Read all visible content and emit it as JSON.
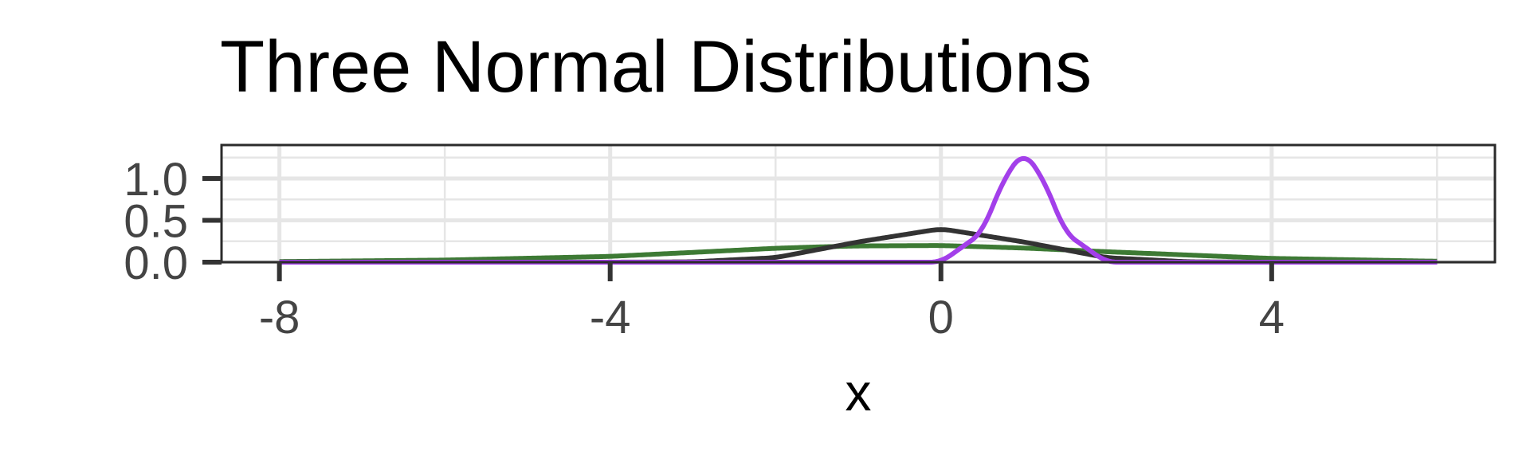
{
  "chart_data": {
    "type": "line",
    "title": "Three Normal Distributions",
    "xlabel": "x",
    "ylabel": "",
    "xlim": [
      -8.7,
      6.7
    ],
    "ylim": [
      0,
      1.4
    ],
    "x_ticks": [
      -8,
      -4,
      0,
      4
    ],
    "x_tick_labels": [
      "-8",
      "-4",
      "0",
      "4"
    ],
    "y_ticks": [
      0,
      0.5,
      1.0
    ],
    "y_tick_labels": [
      "0.0",
      "0.5",
      "1.0"
    ],
    "grid": true,
    "legend": "none",
    "x_range": [
      -8,
      6
    ],
    "series": [
      {
        "color": "#3d7a34",
        "x": [
          -8,
          -6,
          -4,
          -3,
          -2,
          -1.5,
          -1,
          0,
          1,
          2,
          4,
          6
        ],
        "values": [
          0.007,
          0.025,
          0.069,
          0.117,
          0.166,
          0.182,
          0.194,
          0.199,
          0.169,
          0.125,
          0.045,
          0.011
        ]
      },
      {
        "color": "#333333",
        "x": [
          -8,
          -4,
          -3,
          -2,
          -1,
          0,
          1,
          2,
          3,
          4,
          6
        ],
        "values": [
          0,
          0.0001,
          0.004,
          0.054,
          0.242,
          0.399,
          0.242,
          0.054,
          0.004,
          0.0001,
          0
        ]
      },
      {
        "color": "#a33fea",
        "x": [
          -8,
          0,
          0.5,
          0.75,
          1,
          1.25,
          1.5,
          2,
          6
        ],
        "values": [
          0,
          0.0001,
          0.352,
          0.978,
          1.33,
          0.978,
          0.352,
          0.0001,
          0
        ]
      }
    ]
  }
}
